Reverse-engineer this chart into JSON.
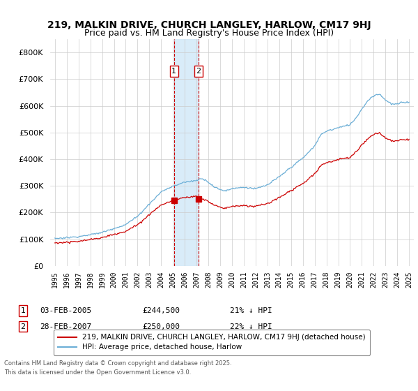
{
  "title": "219, MALKIN DRIVE, CHURCH LANGLEY, HARLOW, CM17 9HJ",
  "subtitle": "Price paid vs. HM Land Registry's House Price Index (HPI)",
  "legend_line1": "219, MALKIN DRIVE, CHURCH LANGLEY, HARLOW, CM17 9HJ (detached house)",
  "legend_line2": "HPI: Average price, detached house, Harlow",
  "transaction1_date": "03-FEB-2005",
  "transaction1_price": "£244,500",
  "transaction1_hpi": "21% ↓ HPI",
  "transaction1_year": 2005.09,
  "transaction1_value": 244500,
  "transaction2_date": "28-FEB-2007",
  "transaction2_price": "£250,000",
  "transaction2_hpi": "22% ↓ HPI",
  "transaction2_year": 2007.16,
  "transaction2_value": 250000,
  "footer": "Contains HM Land Registry data © Crown copyright and database right 2025.\nThis data is licensed under the Open Government Licence v3.0.",
  "hpi_color": "#6baed6",
  "price_color": "#cc0000",
  "vline_color": "#cc0000",
  "vshade_color": "#d0e8f8",
  "ylim_min": 0,
  "ylim_max": 850000,
  "yticks": [
    0,
    100000,
    200000,
    300000,
    400000,
    500000,
    600000,
    700000,
    800000
  ]
}
